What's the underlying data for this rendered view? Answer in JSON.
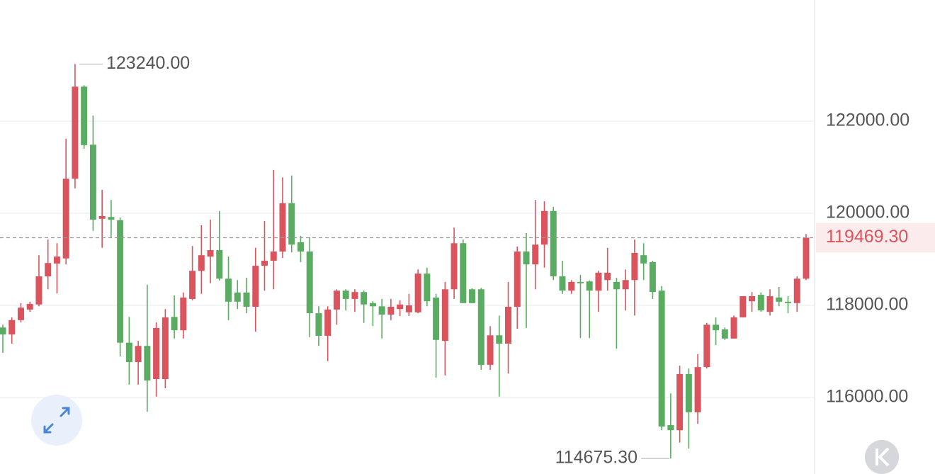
{
  "chart_data": {
    "type": "candlestick",
    "up_color": "#d9545d",
    "down_color": "#5aac62",
    "open": [
      117520,
      117370,
      117680,
      117910,
      118020,
      118630,
      118910,
      119020,
      120750,
      122750,
      121490,
      119880,
      119920,
      119850,
      117190,
      116770,
      117120,
      116400,
      116400,
      117750,
      117460,
      118140,
      118750,
      119060,
      119200,
      118580,
      118280,
      118280,
      117970,
      118860,
      118970,
      119170,
      120220,
      119370,
      119170,
      117830,
      117340,
      117910,
      118320,
      118140,
      118290,
      118050,
      117980,
      117800,
      117920,
      117850,
      117850,
      118690,
      118170,
      117230,
      118350,
      119350,
      118350,
      118350,
      116710,
      117350,
      117170,
      117970,
      119170,
      118890,
      119320,
      120050,
      118630,
      118320,
      118510,
      118520,
      118320,
      118550,
      118510,
      118350,
      118550,
      119090,
      118940,
      118320,
      115400,
      115290,
      116510,
      115680,
      116660,
      117580,
      117480,
      117280,
      117740,
      118090,
      118230,
      117860,
      118170,
      118080,
      118050,
      118580
    ],
    "high": [
      117580,
      117740,
      118050,
      118080,
      119090,
      119430,
      119350,
      121620,
      123240,
      122780,
      122120,
      120510,
      120290,
      119910,
      117750,
      117230,
      118450,
      117630,
      117920,
      118220,
      118280,
      119290,
      119740,
      119860,
      120050,
      119060,
      118550,
      118600,
      119250,
      119830,
      120940,
      120780,
      120820,
      119510,
      119480,
      117980,
      117980,
      118350,
      118350,
      118350,
      118320,
      118090,
      118140,
      118140,
      118110,
      118250,
      118780,
      118820,
      118250,
      118510,
      119690,
      119430,
      118370,
      118380,
      117550,
      117780,
      118510,
      119280,
      119570,
      120290,
      120260,
      120140,
      118970,
      118550,
      118660,
      118540,
      118750,
      119250,
      118600,
      118780,
      119430,
      119350,
      118970,
      118420,
      116090,
      116690,
      116630,
      116940,
      117620,
      117740,
      117520,
      117780,
      118200,
      118290,
      118280,
      118350,
      118400,
      118200,
      118630,
      119550
    ],
    "low": [
      116970,
      117170,
      117630,
      117860,
      117980,
      118350,
      118260,
      118890,
      120540,
      121400,
      119620,
      119250,
      119480,
      116890,
      116280,
      116280,
      115690,
      116020,
      116200,
      117280,
      117280,
      118110,
      118250,
      118480,
      118540,
      117680,
      117920,
      117830,
      117430,
      118320,
      118350,
      119030,
      119150,
      118940,
      117310,
      117120,
      116790,
      117580,
      117890,
      117860,
      117620,
      117550,
      117280,
      117680,
      117770,
      117770,
      117830,
      117980,
      116430,
      116480,
      118140,
      118050,
      118050,
      116600,
      116600,
      116020,
      116520,
      117490,
      117510,
      118350,
      118820,
      118550,
      118250,
      118250,
      117290,
      117290,
      117860,
      118320,
      117060,
      117890,
      117780,
      118550,
      118140,
      115290,
      114675.3,
      115020,
      114890,
      115430,
      116630,
      117140,
      117250,
      117280,
      117740,
      117860,
      117860,
      117780,
      117980,
      117830,
      117860,
      118550
    ],
    "close": [
      117370,
      117680,
      117950,
      118030,
      118630,
      118920,
      119060,
      120750,
      122750,
      121480,
      119860,
      119940,
      119860,
      117190,
      116770,
      117120,
      116370,
      117510,
      117740,
      117460,
      118170,
      118750,
      119090,
      119200,
      118580,
      118080,
      118080,
      117970,
      118860,
      118970,
      119170,
      120220,
      119320,
      119170,
      117830,
      117340,
      117910,
      118320,
      118140,
      118290,
      118020,
      117980,
      117800,
      117970,
      118020,
      118000,
      118690,
      118090,
      117250,
      118350,
      119350,
      118050,
      118050,
      116710,
      117350,
      117170,
      117970,
      119170,
      118890,
      119320,
      120050,
      118630,
      118320,
      118510,
      118480,
      118320,
      118710,
      118710,
      118350,
      118550,
      119140,
      118910,
      118290,
      115370,
      115290,
      116510,
      115680,
      116660,
      117580,
      117460,
      117280,
      117740,
      118200,
      118200,
      117890,
      118200,
      118080,
      118050,
      118580,
      119469.3
    ],
    "ylim": [
      114339,
      124631
    ],
    "yticks": [
      {
        "value": 116000,
        "label": "116000.00"
      },
      {
        "value": 118000,
        "label": "118000.00"
      },
      {
        "value": 120000,
        "label": "120000.00"
      },
      {
        "value": 122000,
        "label": "122000.00"
      }
    ],
    "grid": true,
    "last_price": {
      "value": 119469.3,
      "label": "119469.30"
    },
    "annotations": [
      {
        "value": 123240,
        "label": "123240.00"
      },
      {
        "value": 114675.3,
        "label": "114675.30"
      }
    ]
  }
}
